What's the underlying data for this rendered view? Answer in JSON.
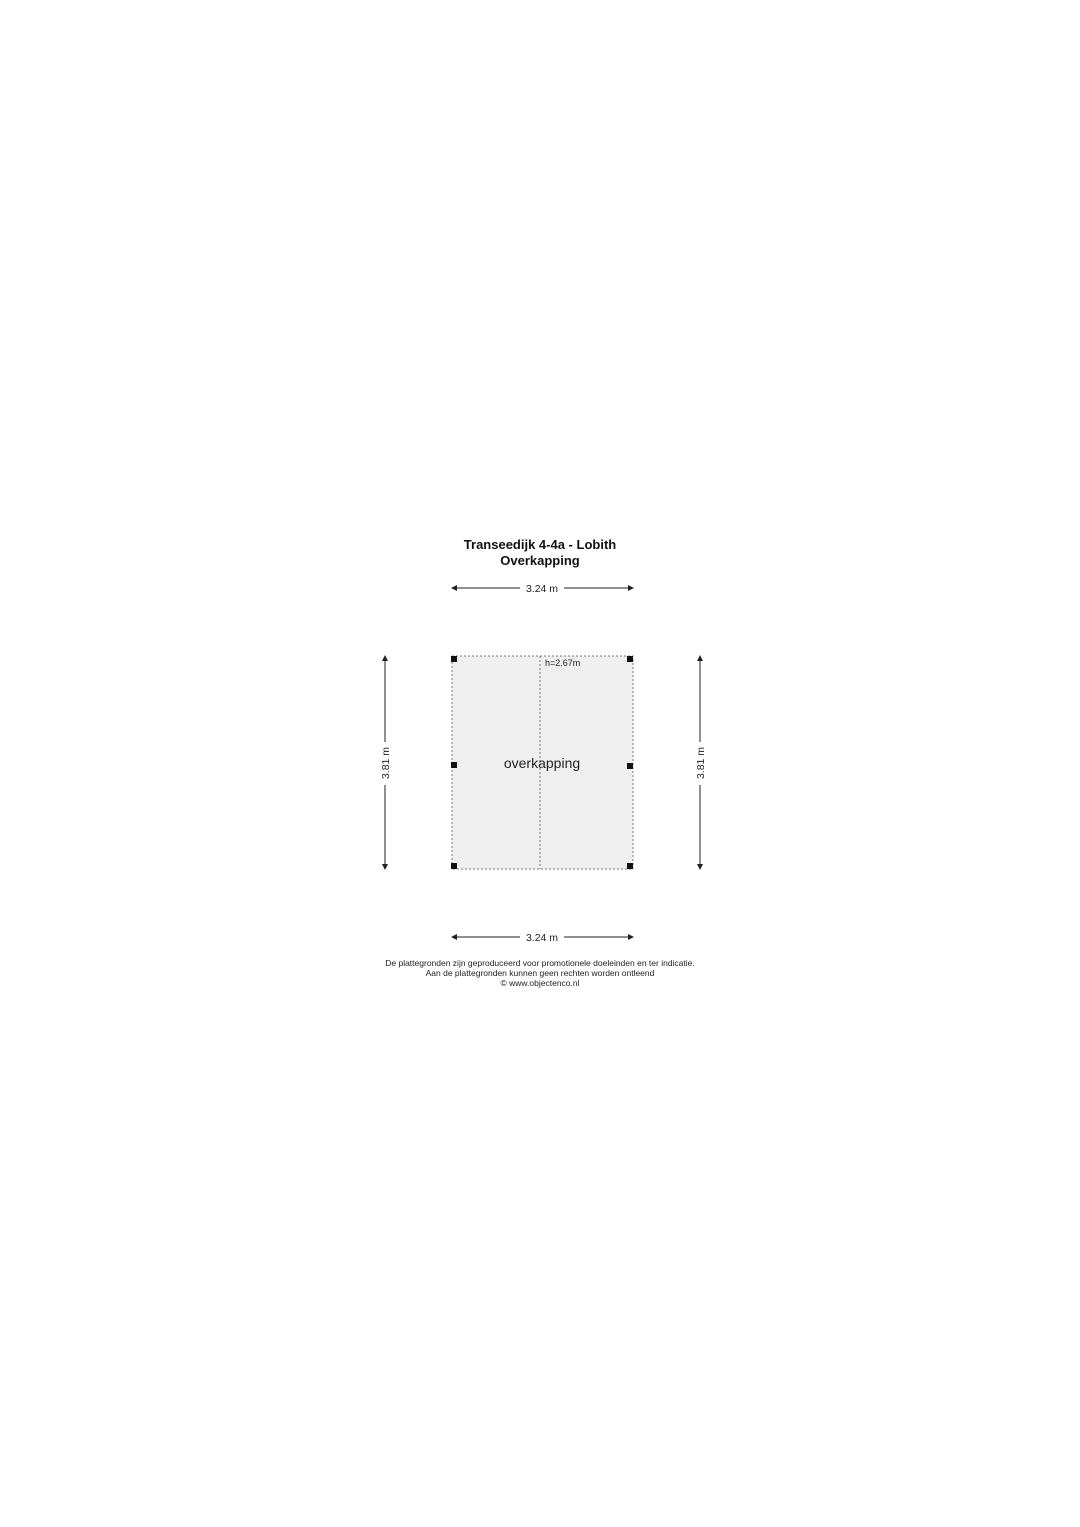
{
  "header": {
    "title": "Transeedijk 4-4a - Lobith",
    "subtitle": "Overkapping"
  },
  "plan": {
    "room_label": "overkapping",
    "height_label": "h=2.67m",
    "dim_top": "3.24 m",
    "dim_bottom": "3.24 m",
    "dim_left": "3.81 m",
    "dim_right": "3.81 m",
    "fill_color": "#efefef"
  },
  "footer": {
    "line1": "De plattegronden zijn geproduceerd voor promotionele doeleinden en ter indicatie.",
    "line2": "Aan de plattegronden kunnen geen rechten worden ontleend",
    "line3": "© www.objectenco.nl"
  }
}
